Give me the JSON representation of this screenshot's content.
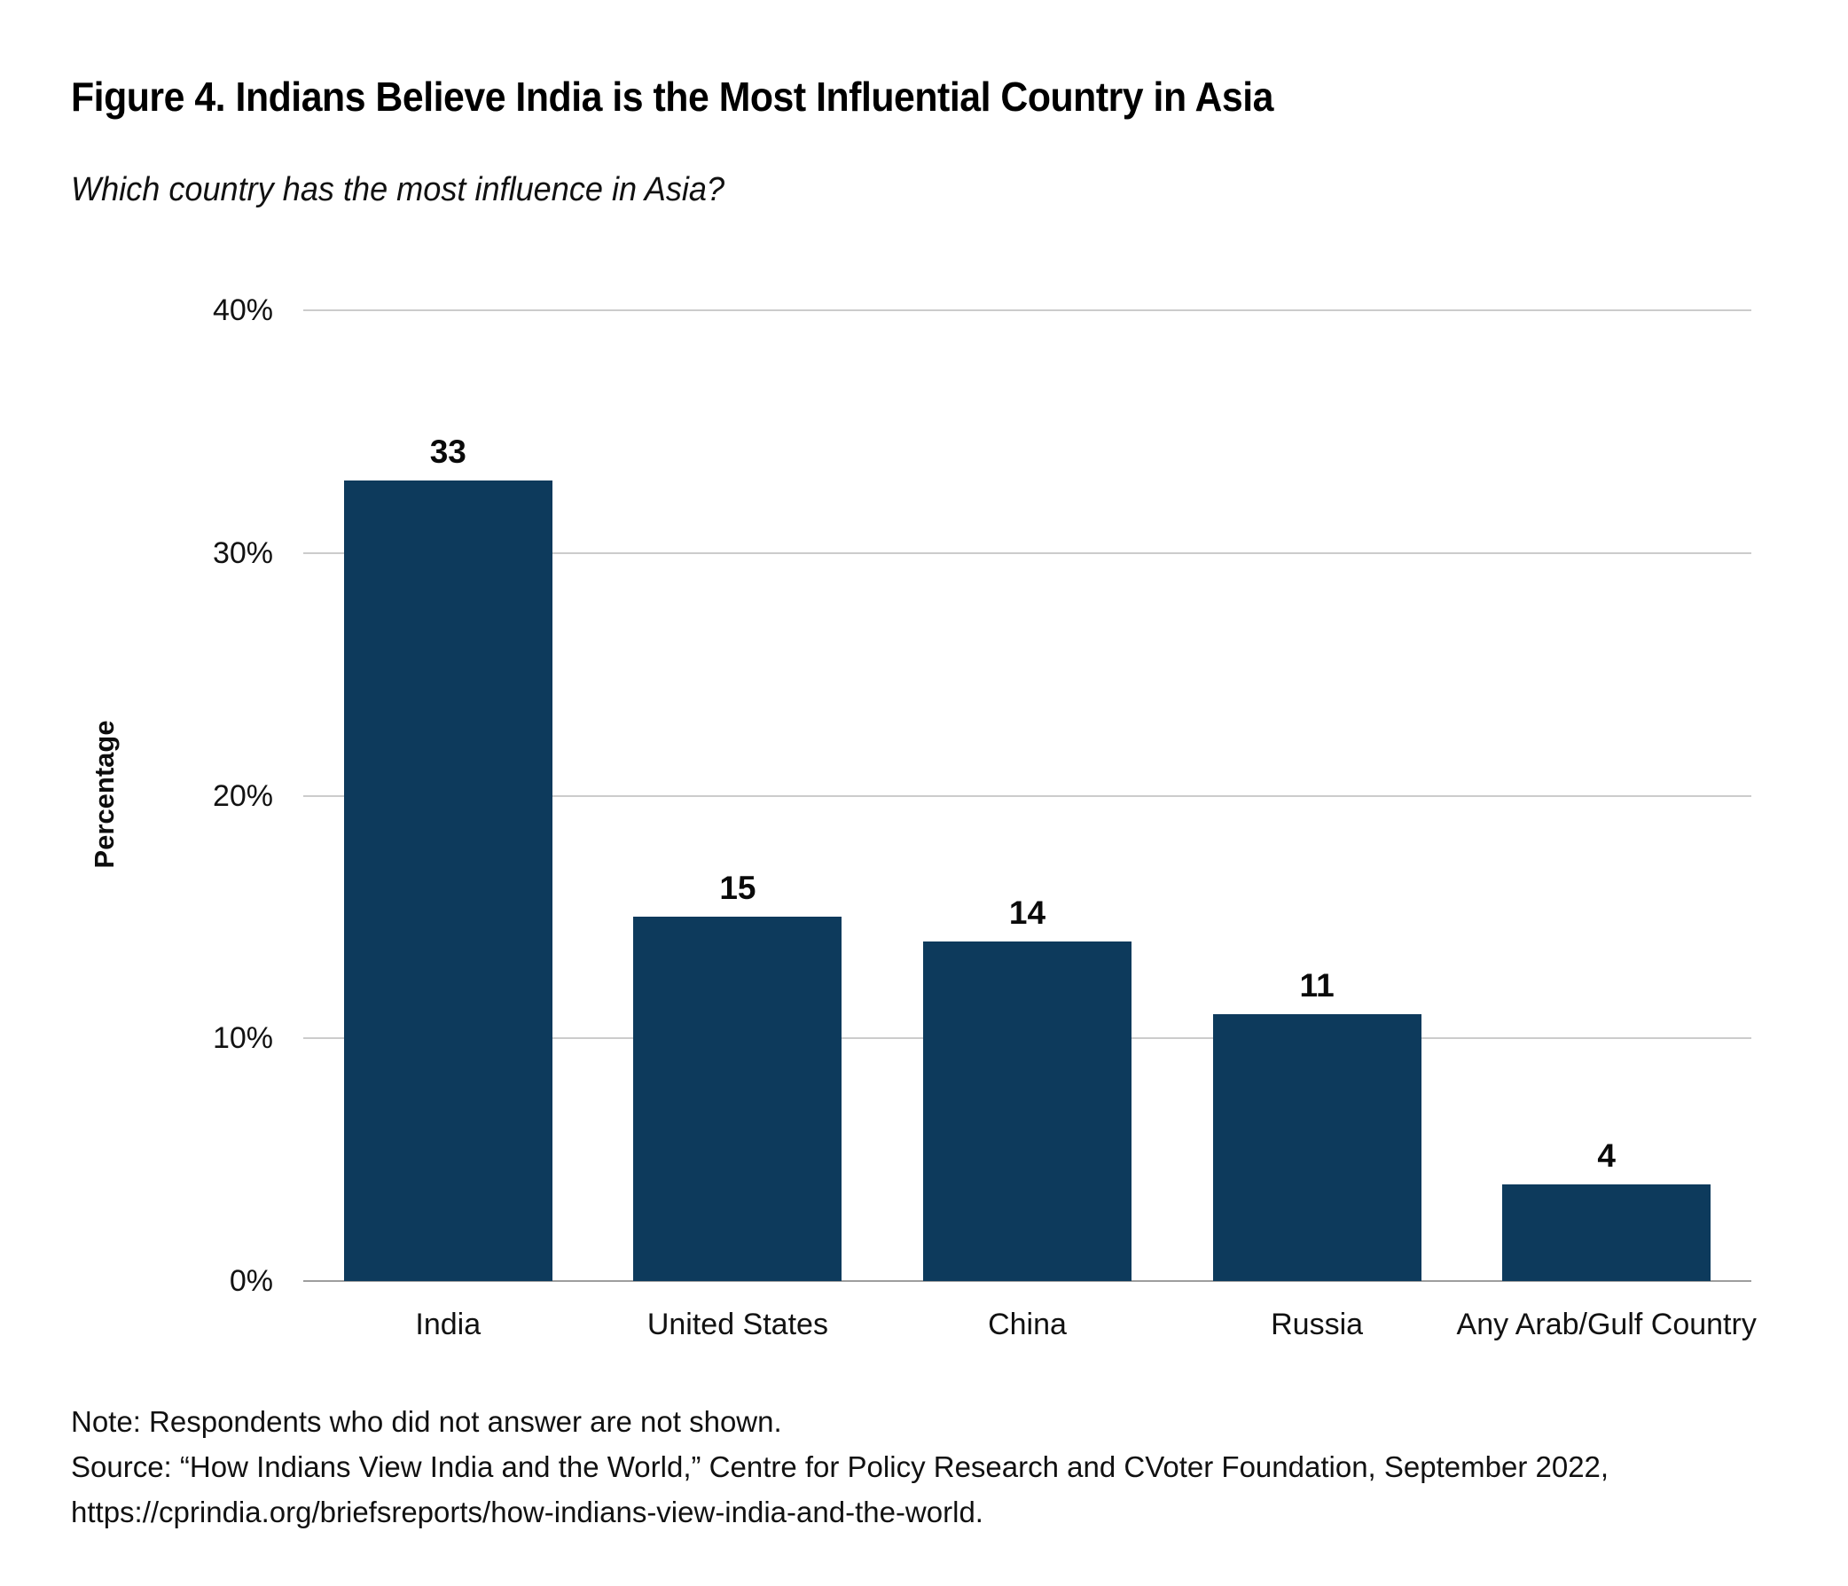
{
  "figure": {
    "title": "Figure 4. Indians Believe India is the Most Influential Country in Asia",
    "subtitle": "Which country has the most influence in Asia?",
    "note": "Note: Respondents who did not answer are not shown.",
    "source_line": "Source: “How Indians View India and the World,” Centre for Policy Research and CVoter Foundation, September 2022,",
    "source_url_line": "https://cprindia.org/briefsreports/how-indians-view-india-and-the-world."
  },
  "chart_data": {
    "type": "bar",
    "title": "Figure 4. Indians Believe India is the Most Influential Country in Asia",
    "subtitle": "Which country has the most influence in Asia?",
    "categories": [
      "India",
      "United States",
      "China",
      "Russia",
      "Any Arab/Gulf Country"
    ],
    "values": [
      33,
      15,
      14,
      11,
      4
    ],
    "value_labels_shown": true,
    "xlabel": "",
    "ylabel": "Percentage",
    "ylim": [
      0,
      40
    ],
    "yticks": [
      0,
      10,
      20,
      30,
      40
    ],
    "ytick_labels": [
      "0%",
      "10%",
      "20%",
      "30%",
      "40%"
    ],
    "grid": "horizontal",
    "legend": false,
    "bar_color": "#0d3a5c",
    "grid_color": "#cccccc",
    "baseline_color": "#9e9e9e"
  }
}
